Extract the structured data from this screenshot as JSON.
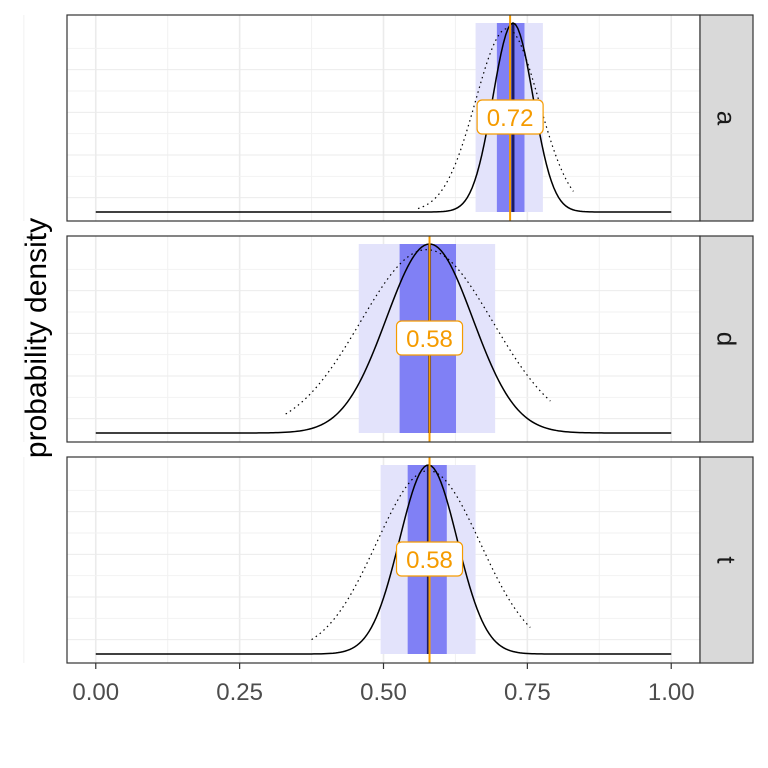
{
  "chart_data": {
    "type": "area",
    "title": "",
    "xlabel": "",
    "ylabel": "probability density",
    "xlim": [
      -0.05,
      1.05
    ],
    "x_ticks": [
      "0.00",
      "0.25",
      "0.50",
      "0.75",
      "1.00"
    ],
    "x_tick_values": [
      0,
      0.25,
      0.5,
      0.75,
      1.0
    ],
    "grid": true,
    "colors": {
      "inner_interval": "#8080f5",
      "outer_interval": "#e3e3fb",
      "estimate_line": "#f59b00",
      "center_line": "#1a1a66",
      "density": "#000000",
      "strip": "#d9d9d9"
    },
    "panels": [
      {
        "strip_label": "a",
        "estimate": 0.72,
        "estimate_label": "0.72",
        "inner_interval": [
          0.697,
          0.745
        ],
        "outer_interval": [
          0.66,
          0.777
        ],
        "posterior": {
          "mean": 0.725,
          "sd": 0.035
        },
        "prior": {
          "mean": 0.715,
          "sd": 0.055,
          "support": [
            0.56,
            0.83
          ]
        }
      },
      {
        "strip_label": "d",
        "estimate": 0.58,
        "estimate_label": "0.58",
        "inner_interval": [
          0.528,
          0.626
        ],
        "outer_interval": [
          0.457,
          0.694
        ],
        "posterior": {
          "mean": 0.58,
          "sd": 0.075
        },
        "prior": {
          "mean": 0.575,
          "sd": 0.115,
          "support": [
            0.33,
            0.79
          ]
        }
      },
      {
        "strip_label": "t",
        "estimate": 0.58,
        "estimate_label": "0.58",
        "inner_interval": [
          0.542,
          0.61
        ],
        "outer_interval": [
          0.495,
          0.66
        ],
        "posterior": {
          "mean": 0.578,
          "sd": 0.05
        },
        "prior": {
          "mean": 0.578,
          "sd": 0.09,
          "support": [
            0.375,
            0.755
          ]
        }
      }
    ]
  }
}
